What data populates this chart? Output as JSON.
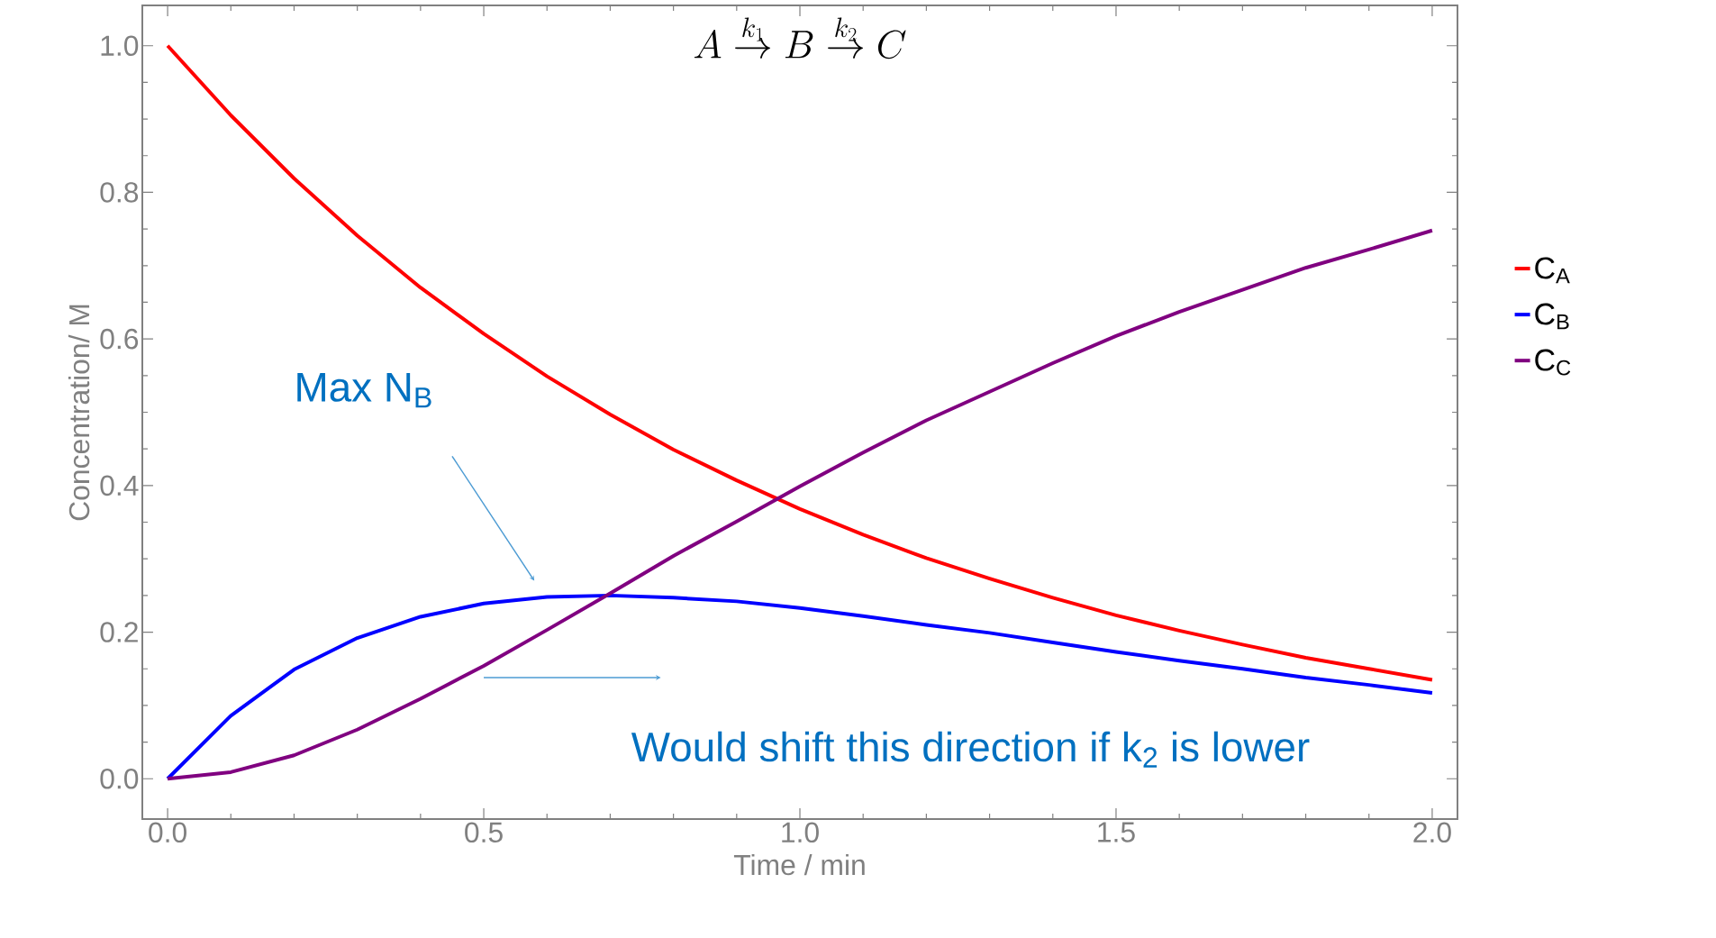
{
  "chart_data": {
    "type": "line",
    "title": "A\\stackrel{k_1}{\\rightarrow}B\\stackrel{k_2}{\\rightarrow}C",
    "xlabel": "Time / min",
    "ylabel": "Concentration/ M",
    "x": [
      0,
      0.1,
      0.2,
      0.3,
      0.4,
      0.5,
      0.6,
      0.7,
      0.8,
      0.9,
      1.0,
      1.1,
      1.2,
      1.3,
      1.4,
      1.5,
      1.6,
      1.7,
      1.8,
      1.9,
      2.0
    ],
    "series": [
      {
        "name": "C$_{A}$",
        "color": "#ff0000",
        "values": [
          1,
          0.905,
          0.819,
          0.741,
          0.67,
          0.607,
          0.549,
          0.497,
          0.449,
          0.407,
          0.368,
          0.333,
          0.301,
          0.273,
          0.247,
          0.223,
          0.202,
          0.183,
          0.165,
          0.15,
          0.135
        ]
      },
      {
        "name": "C$_{B}$",
        "color": "#0000ff",
        "values": [
          0,
          0.086,
          0.149,
          0.192,
          0.221,
          0.239,
          0.248,
          0.25,
          0.247,
          0.242,
          0.233,
          0.222,
          0.21,
          0.199,
          0.186,
          0.173,
          0.161,
          0.15,
          0.138,
          0.128,
          0.117
        ]
      },
      {
        "name": "C$_{C}$",
        "color": "#800080",
        "values": [
          0,
          0.009,
          0.032,
          0.067,
          0.109,
          0.154,
          0.203,
          0.253,
          0.304,
          0.351,
          0.399,
          0.445,
          0.489,
          0.528,
          0.567,
          0.604,
          0.637,
          0.667,
          0.697,
          0.722,
          0.748
        ]
      }
    ],
    "xlim": [
      -0.04,
      2.04
    ],
    "ylim": [
      -0.055,
      1.055
    ],
    "xticks": [
      {
        "value": 0,
        "label": "0.0"
      },
      {
        "value": 0.5,
        "label": "0.5"
      },
      {
        "value": 1,
        "label": "1.0"
      },
      {
        "value": 1.5,
        "label": "1.5"
      },
      {
        "value": 2,
        "label": "2.0"
      }
    ],
    "yticks": [
      {
        "value": 0,
        "label": "0.0"
      },
      {
        "value": 0.2,
        "label": "0.2"
      },
      {
        "value": 0.4,
        "label": "0.4"
      },
      {
        "value": 0.6,
        "label": "0.6"
      },
      {
        "value": 0.8,
        "label": "0.8"
      },
      {
        "value": 1,
        "label": "1.0"
      }
    ],
    "annotations": [
      "Max N$_{B}$",
      "Would shift this direction if k$_{2}$ is lower"
    ],
    "legend": "right",
    "grid": false,
    "marker": "none",
    "line_style": "solid"
  }
}
